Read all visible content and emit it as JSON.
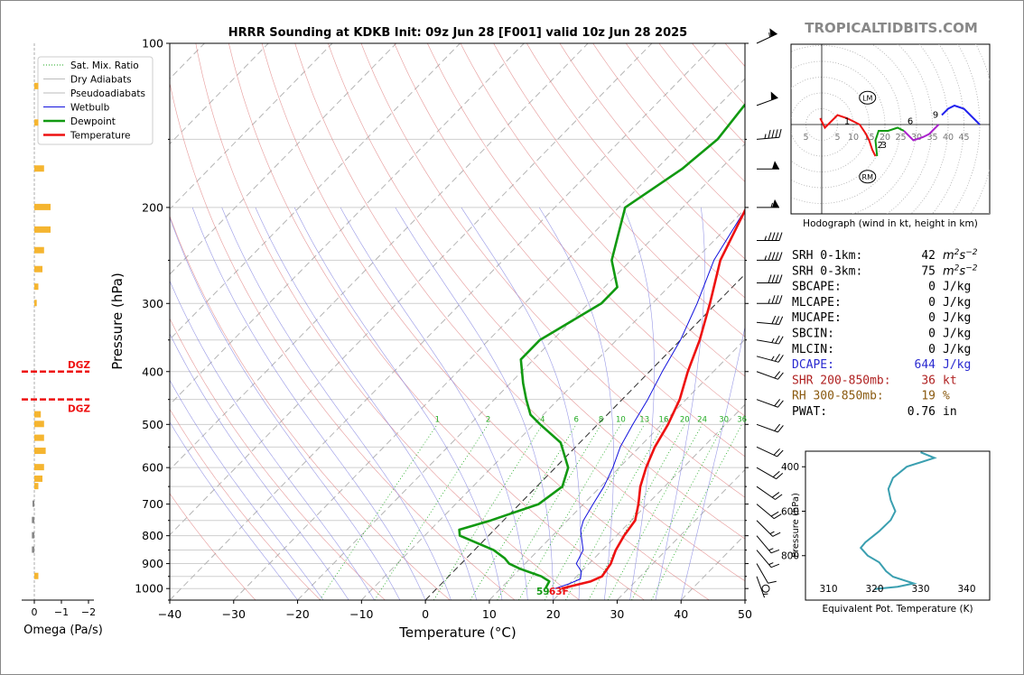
{
  "header": {
    "title": "HRRR Sounding at KDKB Init: 09z Jun 28 [F001] valid 10z Jun 28 2025",
    "brand": "TROPICALTIDBITS.COM"
  },
  "colors": {
    "temperature": "#ee1111",
    "dewpoint": "#119911",
    "wetbulb": "#1111dd",
    "dry_adiabat": "#e08080",
    "pseudoadiabat": "#8080e0",
    "mixing_ratio": "#22aa22",
    "omega": "#f5b530",
    "dgz": "#ee1111",
    "theta_e": "#3a9fb0",
    "dcape": "#2a2ad0",
    "shr": "#b02222",
    "rh": "#8a5a10"
  },
  "chart_data": [
    {
      "type": "line",
      "name": "skew-t",
      "title": "HRRR Sounding at KDKB Init: 09z Jun 28 [F001] valid 10z Jun 28 2025",
      "xlabel": "Temperature (°C)",
      "ylabel": "Pressure (hPa)",
      "xlim": [
        -40,
        50
      ],
      "ylim": [
        1050,
        100
      ],
      "y_scale": "log",
      "x_ticks": [
        -40,
        -30,
        -20,
        -10,
        0,
        10,
        20,
        30,
        40,
        50
      ],
      "x_tick_labels": [
        "−40",
        "−30",
        "−20",
        "−10",
        "0",
        "10",
        "20",
        "30",
        "40",
        "50"
      ],
      "y_ticks": [
        100,
        200,
        300,
        400,
        500,
        600,
        700,
        800,
        900,
        1000
      ],
      "legend": [
        "Sat. Mix. Ratio",
        "Dry Adiabats",
        "Pseudoadiabats",
        "Wetbulb",
        "Dewpoint",
        "Temperature"
      ],
      "legend_position": "top-left",
      "mixing_ratio_labels": [
        "1",
        "2",
        "4",
        "6",
        "8",
        "10",
        "13",
        "16",
        "20",
        "24",
        "30",
        "36"
      ],
      "mixing_ratio_values": [
        1,
        2,
        4,
        6,
        8,
        10,
        13,
        16,
        20,
        24,
        30,
        36
      ],
      "surface_labels": {
        "dewpoint": "59",
        "temperature": "63F"
      },
      "series": [
        {
          "name": "Temperature",
          "points": [
            [
              100,
              -2
            ],
            [
              130,
              -8
            ],
            [
              150,
              -11
            ],
            [
              170,
              -12
            ],
            [
              200,
              -10
            ],
            [
              250,
              -6
            ],
            [
              300,
              -1
            ],
            [
              350,
              3
            ],
            [
              400,
              6
            ],
            [
              450,
              9
            ],
            [
              500,
              11
            ],
            [
              550,
              12.4
            ],
            [
              600,
              14.2
            ],
            [
              650,
              16.2
            ],
            [
              700,
              18.6
            ],
            [
              750,
              20.6
            ],
            [
              800,
              21.2
            ],
            [
              850,
              22.1
            ],
            [
              900,
              23.4
            ],
            [
              950,
              24
            ],
            [
              970,
              23
            ],
            [
              1000,
              19.5
            ]
          ]
        },
        {
          "name": "Dewpoint",
          "points": [
            [
              100,
              -24
            ],
            [
              130,
              -26
            ],
            [
              150,
              -25
            ],
            [
              170,
              -26
            ],
            [
              200,
              -29
            ],
            [
              250,
              -23
            ],
            [
              280,
              -18
            ],
            [
              300,
              -18
            ],
            [
              350,
              -22
            ],
            [
              380,
              -22
            ],
            [
              420,
              -18
            ],
            [
              450,
              -15
            ],
            [
              480,
              -12
            ],
            [
              500,
              -9
            ],
            [
              540,
              -3
            ],
            [
              600,
              2
            ],
            [
              650,
              4
            ],
            [
              700,
              3
            ],
            [
              750,
              -2
            ],
            [
              780,
              -5.5
            ],
            [
              800,
              -4.5
            ],
            [
              850,
              3
            ],
            [
              880,
              6
            ],
            [
              900,
              7.5
            ],
            [
              920,
              10
            ],
            [
              950,
              14.5
            ],
            [
              970,
              16.5
            ],
            [
              1000,
              17
            ]
          ]
        },
        {
          "name": "Wetbulb",
          "points": [
            [
              200,
              -10
            ],
            [
              250,
              -7
            ],
            [
              300,
              -3
            ],
            [
              350,
              0
            ],
            [
              400,
              2
            ],
            [
              450,
              4
            ],
            [
              500,
              5.5
            ],
            [
              550,
              7
            ],
            [
              600,
              9
            ],
            [
              650,
              10.5
            ],
            [
              700,
              11.5
            ],
            [
              750,
              12.5
            ],
            [
              780,
              13.5
            ],
            [
              800,
              14.5
            ],
            [
              850,
              17
            ],
            [
              900,
              18
            ],
            [
              930,
              20
            ],
            [
              960,
              21
            ],
            [
              980,
              20
            ],
            [
              1000,
              18.5
            ]
          ]
        }
      ]
    },
    {
      "type": "bar",
      "name": "omega",
      "xlabel": "Omega (Pa/s)",
      "x_ticks": [
        0,
        -1,
        -2
      ],
      "x_tick_labels": [
        "0",
        "−1",
        "−2"
      ],
      "dgz_label": "DGZ",
      "dgz_pressures": [
        400,
        450
      ],
      "values": [
        [
          120,
          -0.05
        ],
        [
          140,
          -0.05
        ],
        [
          170,
          -0.12
        ],
        [
          200,
          -0.2
        ],
        [
          220,
          -0.2
        ],
        [
          240,
          -0.12
        ],
        [
          260,
          -0.1
        ],
        [
          280,
          -0.05
        ],
        [
          300,
          -0.03
        ],
        [
          480,
          -0.08
        ],
        [
          500,
          -0.12
        ],
        [
          530,
          -0.12
        ],
        [
          560,
          -0.14
        ],
        [
          600,
          -0.12
        ],
        [
          630,
          -0.1
        ],
        [
          650,
          -0.05
        ],
        [
          700,
          0.02
        ],
        [
          750,
          0.03
        ],
        [
          800,
          0.03
        ],
        [
          850,
          0.03
        ],
        [
          950,
          -0.05
        ]
      ]
    },
    {
      "type": "line",
      "name": "hodograph",
      "xlabel": "Hodograph (wind in kt, height in km)",
      "ring_labels": [
        "5",
        "5",
        "10",
        "15",
        "20",
        "25",
        "30",
        "35",
        "40",
        "45"
      ],
      "motion_labels": [
        "LM",
        "RM"
      ],
      "height_labels": [
        "1",
        "2",
        "3",
        "6",
        "9"
      ],
      "segments": [
        {
          "color": "red",
          "points": [
            [
              -0.5,
              2
            ],
            [
              1,
              -1
            ],
            [
              3,
              1
            ],
            [
              5,
              3
            ],
            [
              8,
              2
            ],
            [
              10,
              1
            ],
            [
              12,
              0
            ],
            [
              14,
              -3
            ],
            [
              15,
              -5
            ],
            [
              16,
              -8
            ],
            [
              17,
              -10
            ]
          ]
        },
        {
          "color": "green",
          "points": [
            [
              17.5,
              -10
            ],
            [
              17,
              -5
            ],
            [
              18,
              -2
            ],
            [
              21,
              -2
            ],
            [
              24,
              -1
            ],
            [
              26,
              -2
            ]
          ]
        },
        {
          "color": "purple",
          "points": [
            [
              26,
              -2
            ],
            [
              27,
              -3
            ],
            [
              29,
              -5
            ],
            [
              32,
              -4
            ],
            [
              34,
              -3
            ],
            [
              35,
              -2
            ],
            [
              37,
              0
            ]
          ]
        },
        {
          "color": "blue",
          "points": [
            [
              38,
              3
            ],
            [
              40,
              5
            ],
            [
              42,
              6
            ],
            [
              45,
              5
            ],
            [
              47,
              3
            ],
            [
              50,
              0
            ]
          ]
        }
      ]
    },
    {
      "type": "line",
      "name": "theta-e",
      "xlabel": "Equivalent Pot. Temperature (K)",
      "ylabel": "Pressure (hPa)",
      "x_ticks": [
        310,
        320,
        330,
        340
      ],
      "y_ticks": [
        400,
        600,
        800
      ],
      "xlim": [
        305,
        345
      ],
      "ylim": [
        1000,
        330
      ],
      "points": [
        [
          330,
          335
        ],
        [
          333,
          360
        ],
        [
          327,
          400
        ],
        [
          324,
          450
        ],
        [
          323,
          500
        ],
        [
          323.5,
          550
        ],
        [
          324.5,
          600
        ],
        [
          323.5,
          640
        ],
        [
          321,
          690
        ],
        [
          318,
          740
        ],
        [
          317,
          765
        ],
        [
          318.5,
          800
        ],
        [
          321,
          830
        ],
        [
          322.5,
          870
        ],
        [
          324,
          895
        ],
        [
          328.5,
          925
        ],
        [
          325,
          940
        ],
        [
          320,
          950
        ]
      ]
    }
  ],
  "indices": [
    {
      "label": "SRH 0-1km:",
      "value": "42",
      "unit": "m2s-2",
      "color": "#000000"
    },
    {
      "label": "SRH 0-3km:",
      "value": "75",
      "unit": "m2s-2",
      "color": "#000000"
    },
    {
      "label": "SBCAPE:",
      "value": "0",
      "unit": "J/kg",
      "color": "#000000"
    },
    {
      "label": "MLCAPE:",
      "value": "0",
      "unit": "J/kg",
      "color": "#000000"
    },
    {
      "label": "MUCAPE:",
      "value": "0",
      "unit": "J/kg",
      "color": "#000000"
    },
    {
      "label": "SBCIN:",
      "value": "0",
      "unit": "J/kg",
      "color": "#000000"
    },
    {
      "label": "MLCIN:",
      "value": "0",
      "unit": "J/kg",
      "color": "#000000"
    },
    {
      "label": "DCAPE:",
      "value": "644",
      "unit": "J/kg",
      "color": "#2a2ad0"
    },
    {
      "label": "SHR 200-850mb:",
      "value": "36",
      "unit": "kt",
      "color": "#b02222"
    },
    {
      "label": "RH 300-850mb:",
      "value": "19",
      "unit": "%",
      "color": "#8a5a10"
    },
    {
      "label": "PWAT:",
      "value": "0.76",
      "unit": "in",
      "color": "#000000"
    }
  ],
  "wind_barbs": [
    {
      "p": 100,
      "dir": 245,
      "spd": 55
    },
    {
      "p": 130,
      "dir": 250,
      "spd": 50
    },
    {
      "p": 150,
      "dir": 265,
      "spd": 45
    },
    {
      "p": 170,
      "dir": 270,
      "spd": 50
    },
    {
      "p": 200,
      "dir": 270,
      "spd": 55
    },
    {
      "p": 230,
      "dir": 270,
      "spd": 45
    },
    {
      "p": 250,
      "dir": 270,
      "spd": 45
    },
    {
      "p": 275,
      "dir": 270,
      "spd": 40
    },
    {
      "p": 300,
      "dir": 270,
      "spd": 35
    },
    {
      "p": 325,
      "dir": 275,
      "spd": 30
    },
    {
      "p": 350,
      "dir": 280,
      "spd": 25
    },
    {
      "p": 375,
      "dir": 285,
      "spd": 25
    },
    {
      "p": 400,
      "dir": 290,
      "spd": 20
    },
    {
      "p": 450,
      "dir": 290,
      "spd": 20
    },
    {
      "p": 500,
      "dir": 290,
      "spd": 20
    },
    {
      "p": 550,
      "dir": 295,
      "spd": 20
    },
    {
      "p": 600,
      "dir": 300,
      "spd": 20
    },
    {
      "p": 650,
      "dir": 305,
      "spd": 20
    },
    {
      "p": 700,
      "dir": 310,
      "spd": 20
    },
    {
      "p": 750,
      "dir": 315,
      "spd": 15
    },
    {
      "p": 800,
      "dir": 320,
      "spd": 15
    },
    {
      "p": 850,
      "dir": 320,
      "spd": 15
    },
    {
      "p": 900,
      "dir": 330,
      "spd": 10
    },
    {
      "p": 950,
      "dir": 340,
      "spd": 5
    },
    {
      "p": 1000,
      "dir": 0,
      "spd": 0
    }
  ]
}
